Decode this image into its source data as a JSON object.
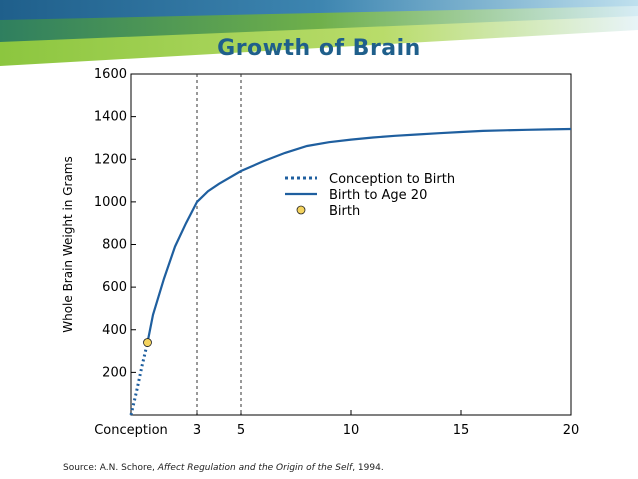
{
  "title": "Growth of Brain",
  "source": {
    "prefix": "Source: A.N. Schore,",
    "book": "Affect Regulation and the Origin of the Self",
    "year": ", 1994."
  },
  "colors": {
    "banner_green": "#8cc63f",
    "banner_blue": "#1f5f8b",
    "line": "#1f5f9f",
    "marker": "#f4d35e",
    "title": "#1f5f8b"
  },
  "chart_data": {
    "type": "line",
    "title": "",
    "xlabel": "",
    "ylabel": "Whole Brain Weight in Grams",
    "xlim": [
      0,
      20
    ],
    "ylim": [
      0,
      1600
    ],
    "x_ticks": [
      {
        "value": 0,
        "label": "Conception"
      },
      {
        "value": 3,
        "label": "3"
      },
      {
        "value": 5,
        "label": "5"
      },
      {
        "value": 10,
        "label": "10"
      },
      {
        "value": 15,
        "label": "15"
      },
      {
        "value": 20,
        "label": "20"
      }
    ],
    "y_ticks": [
      {
        "value": 200,
        "label": "200"
      },
      {
        "value": 400,
        "label": "400"
      },
      {
        "value": 600,
        "label": "600"
      },
      {
        "value": 800,
        "label": "800"
      },
      {
        "value": 1000,
        "label": "1000"
      },
      {
        "value": 1200,
        "label": "1200"
      },
      {
        "value": 1400,
        "label": "1400"
      },
      {
        "value": 1600,
        "label": "1600"
      }
    ],
    "vlines": [
      3,
      5
    ],
    "legend_placement": "center-right",
    "series": [
      {
        "name": "Conception to Birth",
        "style": "dotted",
        "x": [
          0,
          0.25,
          0.5,
          0.75
        ],
        "y": [
          0,
          110,
          230,
          340
        ]
      },
      {
        "name": "Birth to Age 20",
        "style": "solid",
        "x": [
          0.75,
          1,
          1.5,
          2,
          2.5,
          3,
          3.5,
          4,
          5,
          6,
          7,
          8,
          9,
          10,
          11,
          12,
          13,
          14,
          15,
          16,
          17,
          18,
          19,
          20
        ],
        "y": [
          340,
          470,
          640,
          790,
          900,
          1000,
          1050,
          1085,
          1145,
          1190,
          1230,
          1262,
          1280,
          1292,
          1302,
          1310,
          1316,
          1322,
          1328,
          1333,
          1336,
          1338,
          1340,
          1342
        ]
      },
      {
        "name": "Birth",
        "style": "marker",
        "x": [
          0.75
        ],
        "y": [
          340
        ]
      }
    ]
  }
}
